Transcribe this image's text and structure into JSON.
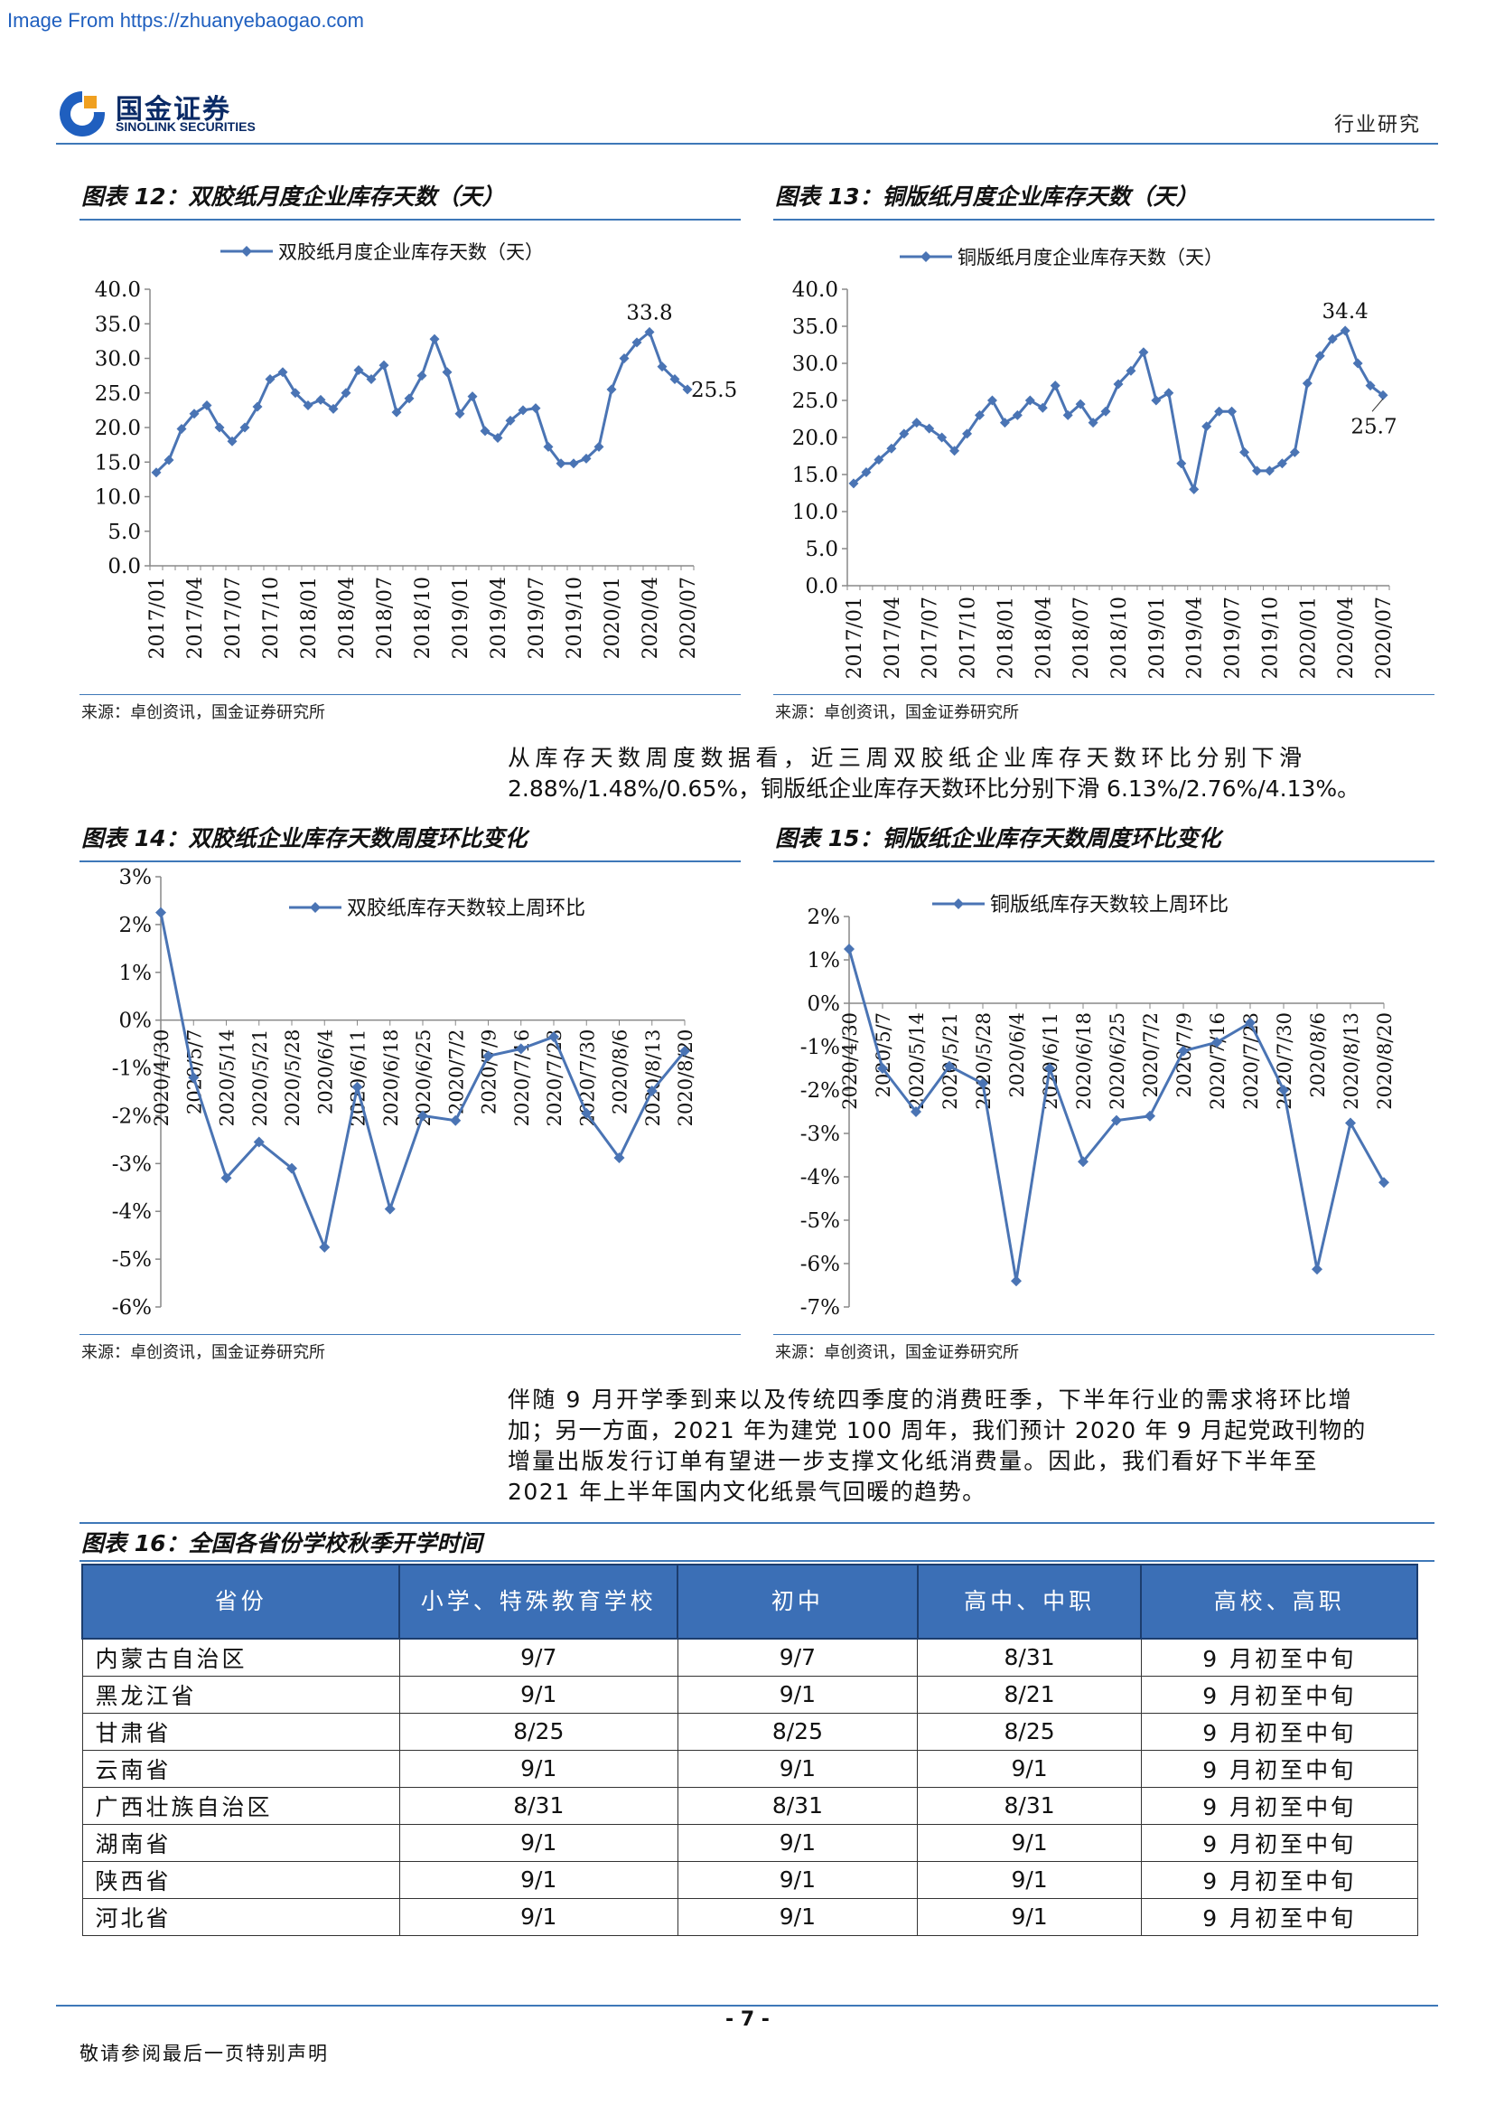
{
  "watermark": "Image From https://zhuanyebaogao.com",
  "header": {
    "logo_cn": "国金证券",
    "logo_en": "SINOLINK SECURITIES",
    "section": "行业研究",
    "brand_blue": "#0a2a66",
    "accent": "#3e78b8"
  },
  "fig12": {
    "title": "图表 12：双胶纸月度企业库存天数（天）",
    "source": "来源：卓创资讯，国金证券研究所",
    "chart_data": {
      "type": "line",
      "legend": "双胶纸月度企业库存天数（天）",
      "legend_position": "top",
      "ylim": [
        0,
        40
      ],
      "yticks": [
        "40.0",
        "35.0",
        "30.0",
        "25.0",
        "20.0",
        "15.0",
        "10.0",
        "5.0",
        "0.0"
      ],
      "xticks": [
        "2017/01",
        "2017/04",
        "2017/07",
        "2017/10",
        "2018/01",
        "2018/04",
        "2018/07",
        "2018/10",
        "2019/01",
        "2019/04",
        "2019/07",
        "2019/10",
        "2020/01",
        "2020/04",
        "2020/07"
      ],
      "annotations": [
        {
          "text": "33.8",
          "index": 39
        },
        {
          "text": "25.5",
          "index": 42
        }
      ],
      "values": [
        13.5,
        15.3,
        19.8,
        22,
        23.2,
        20,
        18,
        20,
        23,
        27,
        28,
        25,
        23.2,
        24,
        22.7,
        25,
        28.3,
        27,
        29,
        22.2,
        24.2,
        27.5,
        32.8,
        28,
        22,
        24.5,
        19.5,
        18.5,
        21,
        22.5,
        22.8,
        17.2,
        14.8,
        14.8,
        15.5,
        17.2,
        25.5,
        30,
        32.3,
        33.8,
        28.8,
        27,
        25.5
      ]
    }
  },
  "fig13": {
    "title": "图表 13：铜版纸月度企业库存天数（天）",
    "source": "来源：卓创资讯，国金证券研究所",
    "chart_data": {
      "type": "line",
      "legend": "铜版纸月度企业库存天数（天）",
      "legend_position": "top",
      "ylim": [
        0,
        40
      ],
      "yticks": [
        "40.0",
        "35.0",
        "30.0",
        "25.0",
        "20.0",
        "15.0",
        "10.0",
        "5.0",
        "0.0"
      ],
      "xticks": [
        "2017/01",
        "2017/04",
        "2017/07",
        "2017/10",
        "2018/01",
        "2018/04",
        "2018/07",
        "2018/10",
        "2019/01",
        "2019/04",
        "2019/07",
        "2019/10",
        "2020/01",
        "2020/04",
        "2020/07"
      ],
      "annotations": [
        {
          "text": "34.4",
          "index": 39
        },
        {
          "text": "25.7",
          "index": 42
        }
      ],
      "values": [
        13.8,
        15.3,
        17,
        18.5,
        20.5,
        22,
        21.2,
        20,
        18.2,
        20.5,
        23,
        25,
        22,
        23,
        25,
        24,
        27,
        23,
        24.5,
        22,
        23.5,
        27.2,
        29,
        31.5,
        25,
        26,
        16.5,
        13,
        21.5,
        23.5,
        23.5,
        18,
        15.5,
        15.5,
        16.5,
        18,
        27.3,
        31,
        33.3,
        34.4,
        30,
        27,
        25.7
      ]
    }
  },
  "para1": {
    "line1": "从库存天数周度数据看，近三周双胶纸企业库存天数环比分别下滑",
    "line2": "2.88%/1.48%/0.65%，铜版纸企业库存天数环比分别下滑 6.13%/2.76%/4.13%。"
  },
  "fig14": {
    "title": "图表 14：双胶纸企业库存天数周度环比变化",
    "source": "来源：卓创资讯，国金证券研究所",
    "chart_data": {
      "type": "line",
      "legend": "双胶纸库存天数较上周环比",
      "legend_position": "top",
      "ylim": [
        -6,
        3
      ],
      "yticks": [
        "3%",
        "2%",
        "1%",
        "0%",
        "-1%",
        "-2%",
        "-3%",
        "-4%",
        "-5%",
        "-6%"
      ],
      "x": [
        "2020/4/30",
        "2020/5/7",
        "2020/5/14",
        "2020/5/21",
        "2020/5/28",
        "2020/6/4",
        "2020/6/11",
        "2020/6/18",
        "2020/6/25",
        "2020/7/2",
        "2020/7/9",
        "2020/7/16",
        "2020/7/23",
        "2020/7/30",
        "2020/8/6",
        "2020/8/13",
        "2020/8/20"
      ],
      "values": [
        2.25,
        -1.2,
        -3.3,
        -2.55,
        -3.1,
        -4.75,
        -1.4,
        -3.95,
        -2.0,
        -2.1,
        -0.75,
        -0.6,
        -0.35,
        -1.95,
        -2.88,
        -1.48,
        -0.65
      ]
    }
  },
  "fig15": {
    "title": "图表 15：铜版纸企业库存天数周度环比变化",
    "source": "来源：卓创资讯，国金证券研究所",
    "chart_data": {
      "type": "line",
      "legend": "铜版纸库存天数较上周环比",
      "legend_position": "top",
      "ylim": [
        -7,
        2
      ],
      "yticks": [
        "2%",
        "1%",
        "0%",
        "-1%",
        "-2%",
        "-3%",
        "-4%",
        "-5%",
        "-6%",
        "-7%"
      ],
      "x": [
        "2020/4/30",
        "2020/5/7",
        "2020/5/14",
        "2020/5/21",
        "2020/5/28",
        "2020/6/4",
        "2020/6/11",
        "2020/6/18",
        "2020/6/25",
        "2020/7/2",
        "2020/7/9",
        "2020/7/16",
        "2020/7/23",
        "2020/7/30",
        "2020/8/6",
        "2020/8/13",
        "2020/8/20"
      ],
      "values": [
        1.25,
        -1.5,
        -2.5,
        -1.45,
        -1.85,
        -6.4,
        -1.5,
        -3.65,
        -2.7,
        -2.6,
        -1.1,
        -0.9,
        -0.45,
        -2.0,
        -6.13,
        -2.76,
        -4.13
      ]
    }
  },
  "para2": {
    "line1": "伴随 9 月开学季到来以及传统四季度的消费旺季，下半年行业的需求将环比增",
    "line2": "加；另一方面，2021 年为建党 100 周年，我们预计 2020 年 9 月起党政刊物的",
    "line3": "增量出版发行订单有望进一步支撑文化纸消费量。因此，我们看好下半年至",
    "line4": "2021 年上半年国内文化纸景气回暖的趋势。"
  },
  "fig16": {
    "title": "图表 16：全国各省份学校秋季开学时间",
    "headers": [
      "省份",
      "小学、特殊教育学校",
      "初中",
      "高中、中职",
      "高校、高职"
    ],
    "rows": [
      [
        "内蒙古自治区",
        "9/7",
        "9/7",
        "8/31",
        "9 月初至中旬"
      ],
      [
        "黑龙江省",
        "9/1",
        "9/1",
        "8/21",
        "9 月初至中旬"
      ],
      [
        "甘肃省",
        "8/25",
        "8/25",
        "8/25",
        "9 月初至中旬"
      ],
      [
        "云南省",
        "9/1",
        "9/1",
        "9/1",
        "9 月初至中旬"
      ],
      [
        "广西壮族自治区",
        "8/31",
        "8/31",
        "8/31",
        "9 月初至中旬"
      ],
      [
        "湖南省",
        "9/1",
        "9/1",
        "9/1",
        "9 月初至中旬"
      ],
      [
        "陕西省",
        "9/1",
        "9/1",
        "9/1",
        "9 月初至中旬"
      ],
      [
        "河北省",
        "9/1",
        "9/1",
        "9/1",
        "9 月初至中旬"
      ]
    ],
    "header_color": "#3b6fb6"
  },
  "footer": {
    "page": "- 7 -",
    "note": "敬请参阅最后一页特别声明"
  }
}
